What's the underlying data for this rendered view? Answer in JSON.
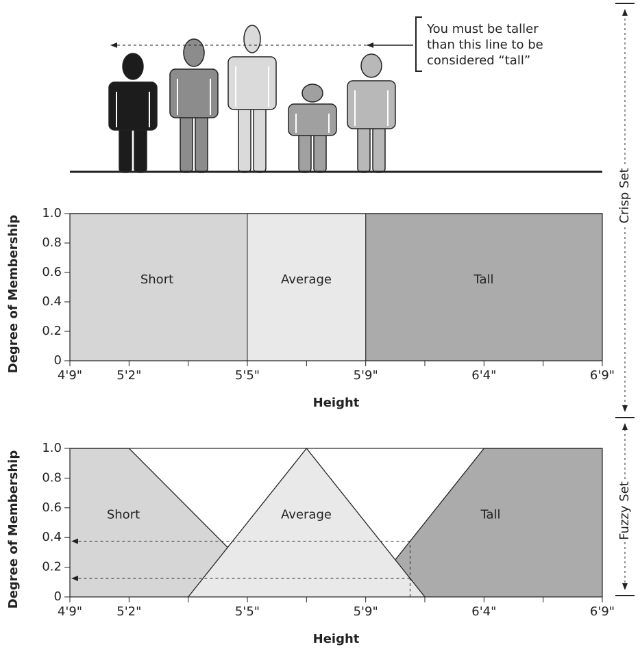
{
  "chart_data": [
    {
      "type": "area",
      "set_label": "Crisp Set",
      "annotation": [
        "You must be taller",
        "than this line to be",
        "considered “tall”"
      ],
      "xlabel": "Height",
      "ylabel": "Degree of Membership",
      "xlim": [
        0,
        9
      ],
      "ylim": [
        0,
        1
      ],
      "xticks": [
        {
          "value": 0,
          "label": "4'9\""
        },
        {
          "value": 1,
          "label": "5'2\""
        },
        {
          "value": 3,
          "label": "5'5\""
        },
        {
          "value": 5,
          "label": "5'9\""
        },
        {
          "value": 7,
          "label": "6'4\""
        },
        {
          "value": 9,
          "label": "6'9\""
        }
      ],
      "minor_xticks": [
        2,
        4,
        6,
        8
      ],
      "yticks": [
        0,
        0.2,
        0.4,
        0.6,
        0.8,
        {
          "value": 1,
          "label": "1.0"
        }
      ],
      "series": [
        {
          "name": "Short",
          "color": "#d6d6d6",
          "x": [
            0,
            3
          ],
          "values": [
            1,
            1
          ]
        },
        {
          "name": "Average",
          "color": "#e9e9e9",
          "x": [
            3,
            5
          ],
          "values": [
            1,
            1
          ]
        },
        {
          "name": "Tall",
          "color": "#ababab",
          "x": [
            5,
            9
          ],
          "values": [
            1,
            1
          ]
        }
      ]
    },
    {
      "type": "area",
      "set_label": "Fuzzy Set",
      "xlabel": "Height",
      "ylabel": "Degree of Membership",
      "xlim": [
        0,
        9
      ],
      "ylim": [
        0,
        1
      ],
      "xticks": [
        {
          "value": 0,
          "label": "4'9\""
        },
        {
          "value": 1,
          "label": "5'2\""
        },
        {
          "value": 3,
          "label": "5'5\""
        },
        {
          "value": 5,
          "label": "5'9\""
        },
        {
          "value": 7,
          "label": "6'4\""
        },
        {
          "value": 9,
          "label": "6'9\""
        }
      ],
      "minor_xticks": [
        2,
        4,
        6,
        8
      ],
      "yticks": [
        0,
        0.2,
        0.4,
        0.6,
        0.8,
        {
          "value": 1,
          "label": "1.0"
        }
      ],
      "series": [
        {
          "name": "Short",
          "color": "#d6d6d6",
          "x": [
            0,
            1,
            3.5
          ],
          "values": [
            1,
            1,
            0
          ]
        },
        {
          "name": "Average",
          "color": "#e9e9e9",
          "x": [
            2,
            4,
            6
          ],
          "values": [
            0,
            1,
            0
          ]
        },
        {
          "name": "Tall",
          "color": "#ababab",
          "x": [
            5,
            7,
            9
          ],
          "values": [
            0,
            1,
            1
          ]
        }
      ],
      "reading": {
        "x": 5.75,
        "values": [
          0.375,
          0.125
        ]
      }
    }
  ]
}
